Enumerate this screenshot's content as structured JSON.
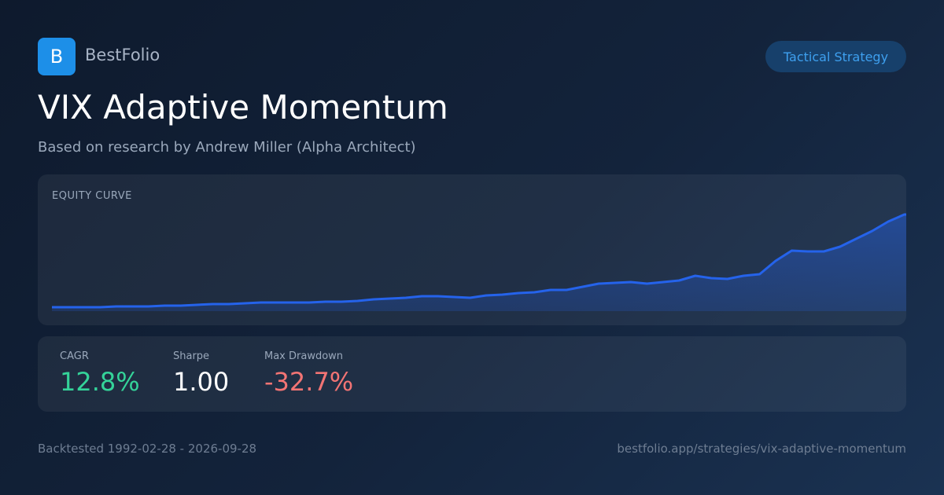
{
  "header": {
    "logo": "B",
    "brand": "BestFolio",
    "badge": "Tactical Strategy"
  },
  "title": "VIX Adaptive Momentum",
  "subtitle": "Based on research by Andrew Miller (Alpha Architect)",
  "chart_data": {
    "type": "area",
    "title": "EQUITY CURVE",
    "color": "#2563eb",
    "values": [
      5,
      5,
      5,
      5,
      6,
      6,
      6,
      7,
      7,
      8,
      9,
      9,
      10,
      11,
      11,
      11,
      11,
      12,
      12,
      13,
      15,
      16,
      17,
      19,
      19,
      18,
      17,
      20,
      21,
      23,
      24,
      27,
      27,
      31,
      35,
      36,
      37,
      35,
      37,
      39,
      45,
      42,
      41,
      45,
      47,
      64,
      77,
      76,
      76,
      82,
      92,
      102,
      114,
      123,
      123
    ]
  },
  "metrics": [
    {
      "label": "CAGR",
      "value": "12.8%"
    },
    {
      "label": "Sharpe",
      "value": "1.00"
    },
    {
      "label": "Max Drawdown",
      "value": "-32.7%"
    }
  ],
  "footer": {
    "left": "Backtested 1992-02-28 - 2026-09-28",
    "right": "bestfolio.app/strategies/vix-adaptive-momentum"
  }
}
